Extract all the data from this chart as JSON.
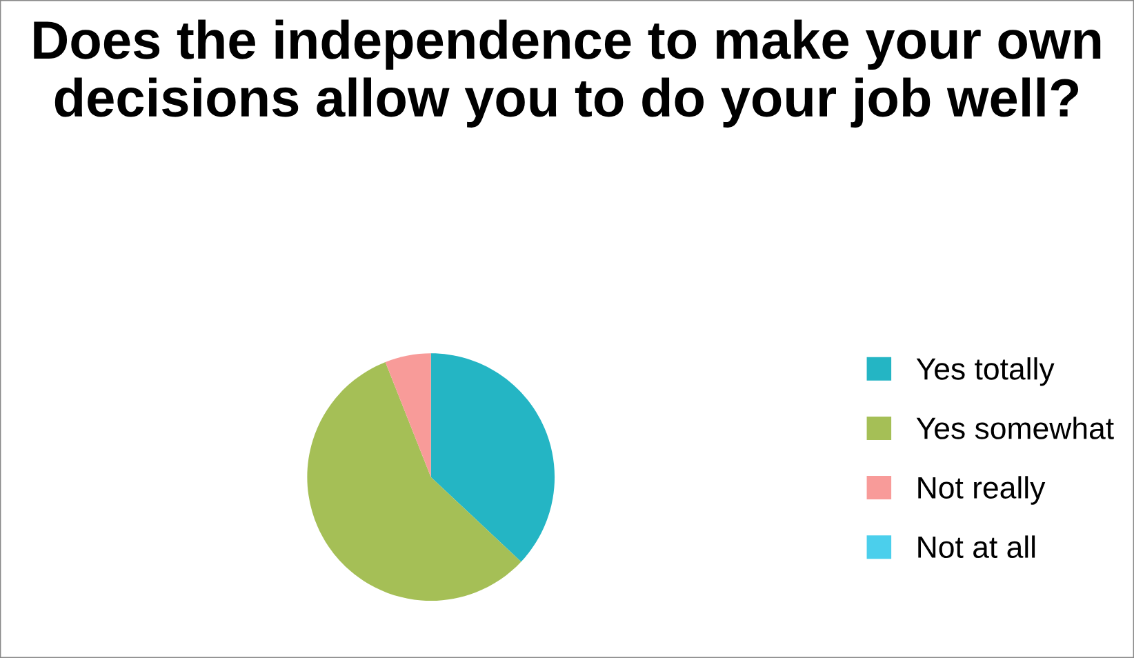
{
  "chart_data": {
    "type": "pie",
    "title": "Does the independence to make your own decisions allow you to do your job well?",
    "categories": [
      "Yes totally",
      "Yes somewhat",
      "Not really",
      "Not at all"
    ],
    "values": [
      37,
      57,
      6,
      0
    ],
    "colors": [
      "#24b5c4",
      "#a5bf56",
      "#f89b99",
      "#4bcfec"
    ],
    "legend": "right"
  }
}
